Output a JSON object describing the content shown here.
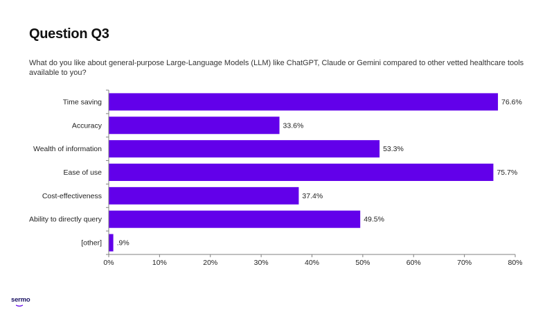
{
  "page": {
    "title": "Question Q3",
    "question": "What do you like about general-purpose Large-Language Models (LLM) like ChatGPT, Claude or Gemini compared to other vetted healthcare tools available to you?",
    "logo_text": "sermo"
  },
  "colors": {
    "bar": "#6200EA",
    "axis": "#808080",
    "text": "#1a1a1a"
  },
  "chart_data": {
    "type": "bar",
    "orientation": "horizontal",
    "categories": [
      "Time saving",
      "Accuracy",
      "Wealth of information",
      "Ease of use",
      "Cost-effectiveness",
      "Ability to directly query",
      "[other]"
    ],
    "values": [
      76.6,
      33.6,
      53.3,
      75.7,
      37.4,
      49.5,
      0.9
    ],
    "data_labels": [
      "76.6%",
      "33.6%",
      "53.3%",
      "75.7%",
      "37.4%",
      "49.5%",
      ".9%"
    ],
    "xlim": [
      0,
      80
    ],
    "x_ticks": [
      0,
      10,
      20,
      30,
      40,
      50,
      60,
      70,
      80
    ],
    "x_tick_labels": [
      "0%",
      "10%",
      "20%",
      "30%",
      "40%",
      "50%",
      "60%",
      "70%",
      "80%"
    ],
    "title": "",
    "xlabel": "",
    "ylabel": "",
    "grid": false
  }
}
